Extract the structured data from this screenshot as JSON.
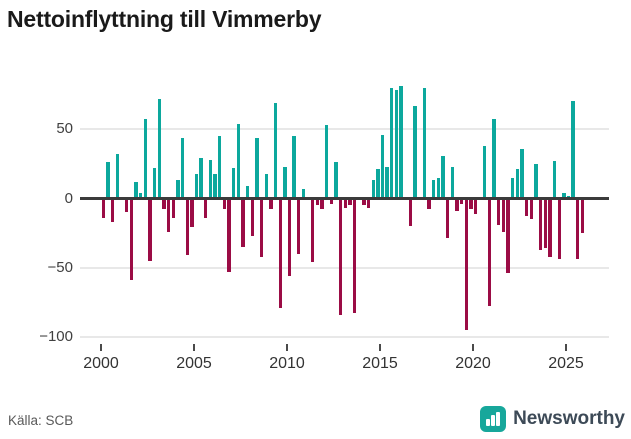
{
  "title": "Nettoinflyttning till Vimmerby",
  "footer": {
    "source": "Källa: SCB",
    "brand": "Newsworthy"
  },
  "colors": {
    "positive": "#0ca89d",
    "negative": "#9b0c45",
    "axis": "#3b3b3b",
    "grid": "#e8e8e8",
    "brand_icon": "#17a79b",
    "brand_text": "#3d4a57"
  },
  "chart_data": {
    "type": "bar",
    "title": "Nettoinflyttning till Vimmerby",
    "frequency": "quarterly",
    "start_year": 2000,
    "start_quarter": 1,
    "x_tick_labels": [
      "2000",
      "2005",
      "2010",
      "2015",
      "2020",
      "2025"
    ],
    "y_tick_values": [
      50,
      0,
      -50,
      -100
    ],
    "ylim": [
      -108,
      89
    ],
    "grid": true,
    "legend": false,
    "values": [
      -13,
      26,
      -16,
      32,
      0,
      -9,
      -58,
      12,
      4,
      57,
      -44,
      22,
      72,
      -7,
      -23,
      -13,
      13,
      44,
      -40,
      -20,
      18,
      29,
      -13,
      28,
      18,
      45,
      -7,
      -52,
      22,
      54,
      -34,
      9,
      -26,
      44,
      -41,
      18,
      -7,
      69,
      -78,
      23,
      -55,
      45,
      -39,
      7,
      0,
      -45,
      -4,
      -7,
      53,
      -3,
      26,
      -83,
      -6,
      -4,
      -82,
      0,
      -4,
      -6,
      13,
      21,
      46,
      23,
      80,
      78,
      81,
      0,
      -19,
      67,
      0,
      80,
      -7,
      13,
      15,
      31,
      -28,
      23,
      -8,
      -3,
      -94,
      -7,
      -10,
      0,
      38,
      -77,
      57,
      -18,
      -23,
      -53,
      15,
      21,
      36,
      -12,
      -14,
      25,
      -36,
      -35,
      -41,
      27,
      -43,
      4,
      2,
      70,
      -43,
      -24
    ]
  }
}
